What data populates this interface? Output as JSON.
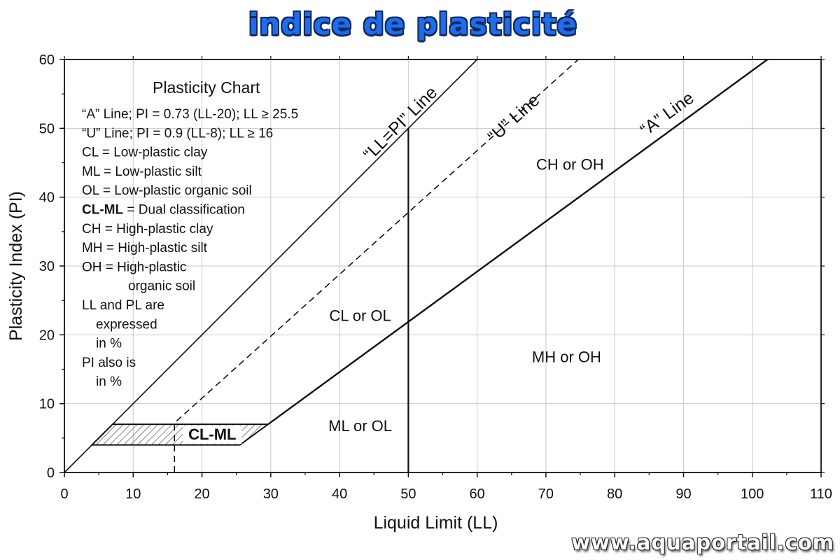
{
  "page": {
    "title": "indice de plasticité",
    "watermark": "www.aquaportail.com"
  },
  "chart_data": {
    "type": "line",
    "title": "Plasticity Chart",
    "xlabel": "Liquid Limit (LL)",
    "ylabel": "Plasticity Index (PI)",
    "xlim": [
      0,
      110
    ],
    "ylim": [
      0,
      60
    ],
    "x_ticks": [
      0,
      10,
      20,
      30,
      40,
      50,
      60,
      70,
      80,
      90,
      100,
      110
    ],
    "y_ticks": [
      0,
      10,
      20,
      30,
      40,
      50,
      60
    ],
    "grid": true,
    "legend_items": [
      "“A” Line; PI = 0.73 (LL-20); LL ≥ 25.5",
      "“U” Line; PI = 0.9 (LL-8); LL ≥ 16",
      "CL = Low-plastic clay",
      "ML = Low-plastic silt",
      "OL = Low-plastic organic soil",
      "CL-ML = Dual classification",
      "CH = High-plastic clay",
      "MH = High-plastic silt",
      "OH = High-plastic",
      "organic soil",
      "LL and PL are",
      "expressed",
      "in %",
      "PI also is",
      "in %"
    ],
    "legend_bold_prefix": "CL-ML",
    "series": [
      {
        "name": "“LL=PI” Line",
        "x": [
          0,
          60
        ],
        "y": [
          0,
          60
        ]
      },
      {
        "name": "“U” Line",
        "x": [
          16,
          16,
          74.7
        ],
        "y": [
          0,
          7.2,
          60
        ]
      },
      {
        "name": "“A” Line",
        "x": [
          29.6,
          102.2
        ],
        "y": [
          7,
          60
        ]
      },
      {
        "x": [
          50,
          50
        ],
        "y": [
          0,
          50
        ]
      }
    ],
    "hatched_zone": {
      "label": "CL-ML",
      "polygon": [
        [
          4,
          4
        ],
        [
          25.5,
          4
        ],
        [
          29.6,
          7
        ],
        [
          7,
          7
        ]
      ]
    },
    "region_labels": [
      {
        "text": "CH or OH",
        "x": 73.5,
        "y": 44
      },
      {
        "text": "CL or OL",
        "x": 43,
        "y": 22
      },
      {
        "text": "MH or OH",
        "x": 73,
        "y": 16
      },
      {
        "text": "ML or OL",
        "x": 43,
        "y": 6
      },
      {
        "text": "CL-ML",
        "x": 21.5,
        "y": 5.5
      }
    ]
  }
}
